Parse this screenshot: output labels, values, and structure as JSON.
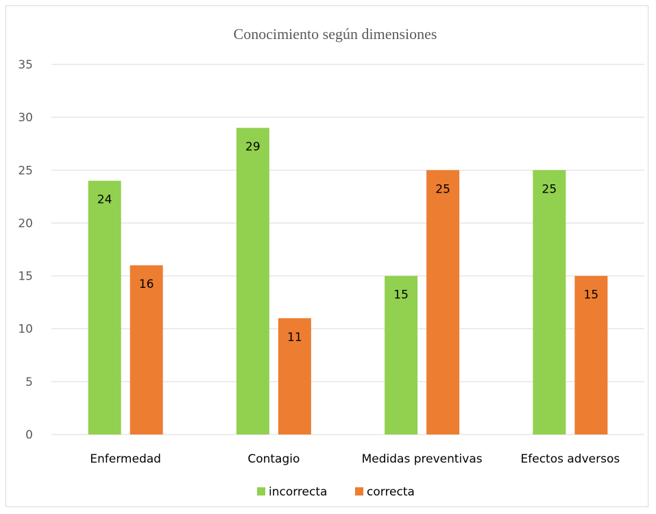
{
  "chart_data": {
    "type": "bar",
    "title": "Conocimiento según dimensiones",
    "categories": [
      "Enfermedad",
      "Contagio",
      "Medidas preventivas",
      "Efectos adversos"
    ],
    "series": [
      {
        "name": "incorrecta",
        "color": "#92d050",
        "values": [
          24,
          29,
          15,
          25
        ]
      },
      {
        "name": "correcta",
        "color": "#ed7d31",
        "values": [
          16,
          11,
          25,
          15
        ]
      }
    ],
    "ylim": [
      0,
      35
    ],
    "yticks": [
      0,
      5,
      10,
      15,
      20,
      25,
      30,
      35
    ],
    "grid": true,
    "legend": "bottom",
    "data_labels": "inside-end",
    "xlabel": "",
    "ylabel": ""
  }
}
